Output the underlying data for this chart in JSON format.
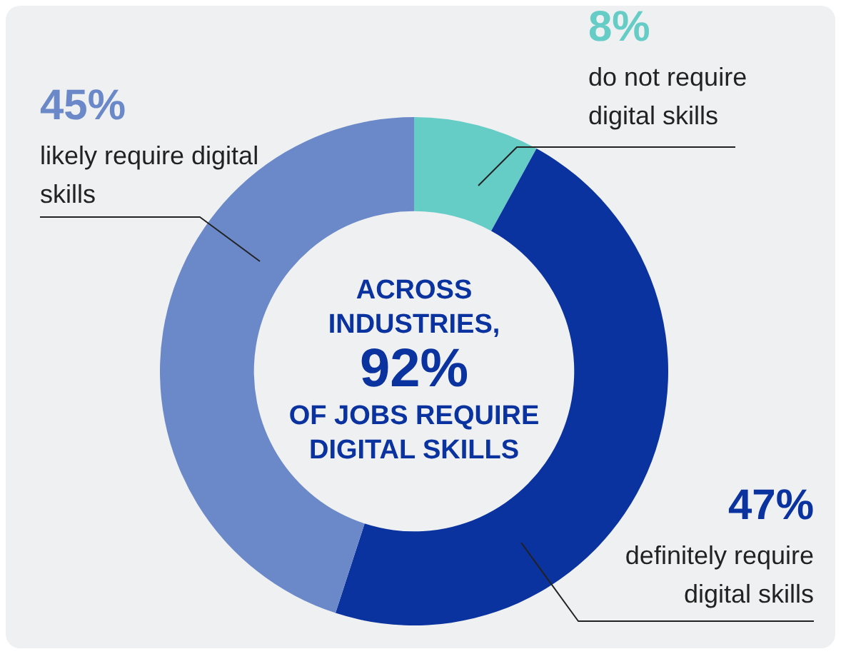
{
  "chart_data": {
    "type": "donut",
    "categories": [
      "do not require digital skills",
      "definitely require digital skills",
      "likely require digital skills"
    ],
    "values": [
      8,
      47,
      45
    ],
    "value_labels": [
      "8%",
      "47%",
      "45%"
    ],
    "colors": [
      "#66ccc6",
      "#0b33a0",
      "#6b89c9"
    ],
    "annotations": [
      "ACROSS INDUSTRIES,",
      "92%",
      "OF JOBS REQUIRE DIGITAL SKILLS"
    ]
  }
}
